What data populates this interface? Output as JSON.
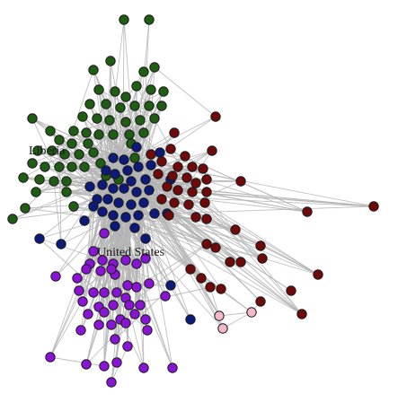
{
  "labels": {
    "liberia": "Liberia",
    "united_states": "United States"
  },
  "colors": {
    "background": "#ffffff",
    "edge": "#b4b4b4",
    "green_cluster": "#1f5c14",
    "navy_cluster": "#0d1a7a",
    "darkred_cluster": "#6e0a0a",
    "purple_cluster": "#8a14d6",
    "pink_cluster": "#f4b9c8"
  }
}
